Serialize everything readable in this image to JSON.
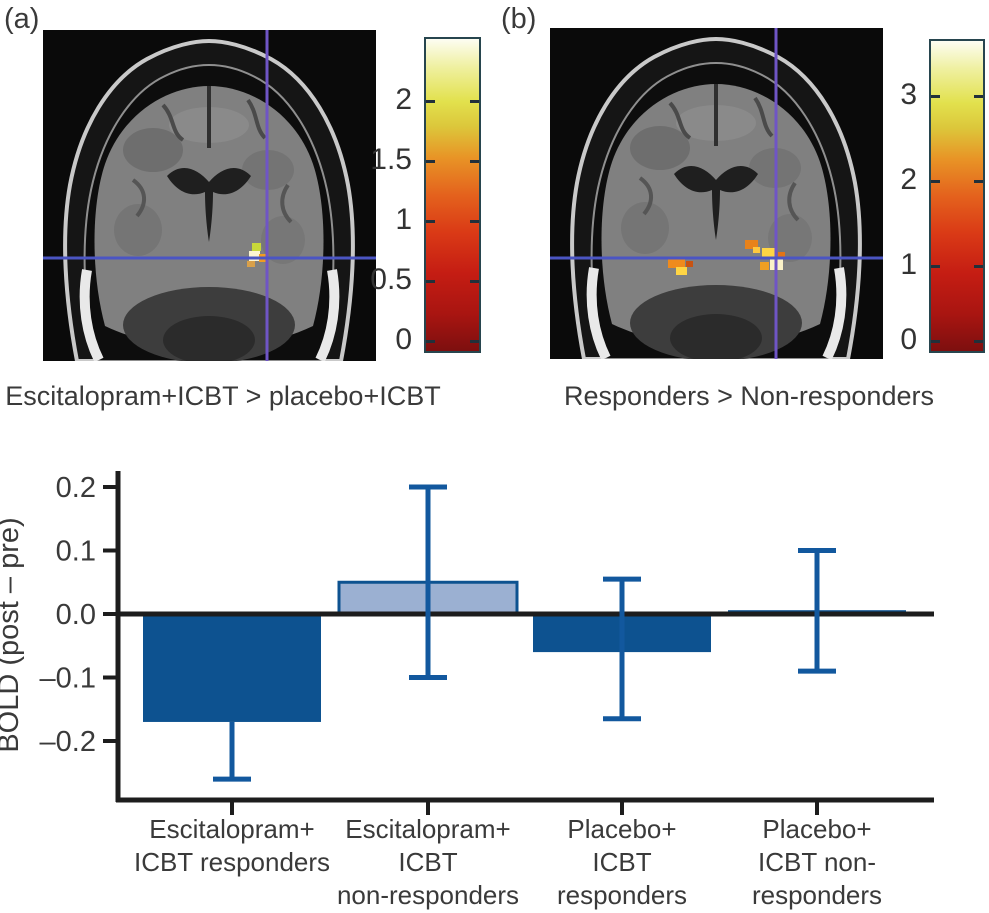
{
  "colors": {
    "bar_dark": "#0d5290",
    "bar_light": "#9bb0d2",
    "error": "#12589e",
    "axis": "#1d1d1d",
    "text": "#3a3a3a",
    "crosshair_v": "#6f55c5",
    "crosshair_h": "#4b55c3"
  },
  "panel_a": {
    "label": "(a)",
    "caption": "Escitalopram+ICBT > placebo+ICBT",
    "colorbar": {
      "min": 0,
      "max": 2.5,
      "ticks": [
        "2",
        "1.5",
        "1",
        "0.5",
        "0"
      ]
    }
  },
  "panel_b": {
    "label": "(b)",
    "caption": "Responders > Non-responders",
    "colorbar": {
      "min": 0,
      "max": 3.5,
      "ticks": [
        "3",
        "2",
        "1",
        "0"
      ]
    }
  },
  "chart_data": {
    "type": "bar",
    "title": "",
    "xlabel": "",
    "ylabel": "BOLD (post – pre)",
    "ylim": [
      -0.29,
      0.225
    ],
    "grid": false,
    "yticks": [
      0.2,
      0.1,
      0.0,
      -0.1,
      -0.2
    ],
    "ytick_labels": [
      "0.2",
      "0.1",
      "0.0",
      "–0.1",
      "–0.2"
    ],
    "categories": [
      "Escitalopram+ ICBT responders",
      "Escitalopram+ ICBT non-responders",
      "Placebo+ ICBT responders",
      "Placebo+ ICBT non-responders"
    ],
    "bars": [
      {
        "label_lines": [
          "Escitalopram+",
          "ICBT responders"
        ],
        "value": -0.17,
        "err_high": null,
        "err_low": -0.26,
        "style": "dark"
      },
      {
        "label_lines": [
          "Escitalopram+",
          "ICBT",
          "non-responders"
        ],
        "value": 0.05,
        "err_high": 0.2,
        "err_low": -0.1,
        "style": "light"
      },
      {
        "label_lines": [
          "Placebo+",
          "ICBT",
          "responders"
        ],
        "value": -0.06,
        "err_high": 0.055,
        "err_low": -0.165,
        "style": "dark"
      },
      {
        "label_lines": [
          "Placebo+",
          "ICBT non-",
          "responders"
        ],
        "value": 0.006,
        "err_high": 0.1,
        "err_low": -0.09,
        "style": "dark"
      }
    ]
  }
}
